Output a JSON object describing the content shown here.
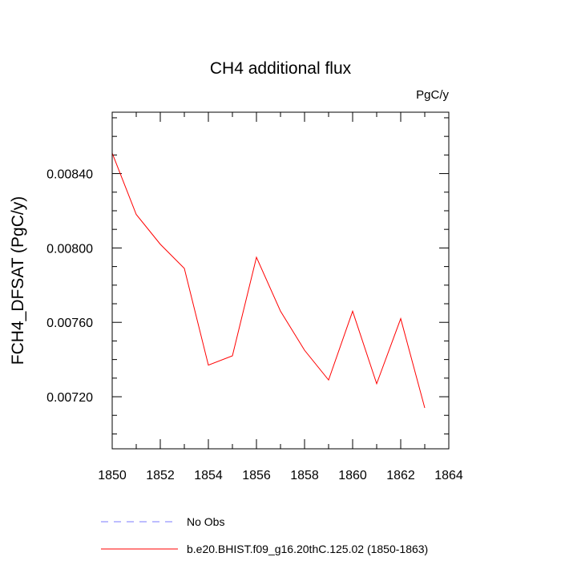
{
  "chart_data": {
    "type": "line",
    "title": "CH4 additional flux",
    "units": "PgC/y",
    "xlabel": "",
    "ylabel": "FCH4_DFSAT  (PgC/y)",
    "xlim": [
      1850,
      1864
    ],
    "ylim": [
      0.00692,
      0.00873
    ],
    "x_ticks": [
      1850,
      1852,
      1854,
      1856,
      1858,
      1860,
      1862,
      1864
    ],
    "x_tick_labels": [
      "1850",
      "1852",
      "1854",
      "1856",
      "1858",
      "1860",
      "1862",
      "1864"
    ],
    "y_ticks": [
      0.0072,
      0.0076,
      0.008,
      0.0084
    ],
    "y_tick_labels": [
      "0.00720",
      "0.00760",
      "0.00800",
      "0.00840"
    ],
    "grid": false,
    "legend_position": "bottom",
    "series": [
      {
        "name": "b.e20.BHIST.f09_g16.20thC.125.02 (1850-1863)",
        "color": "#ff0000",
        "style": "solid",
        "x": [
          1850,
          1851,
          1852,
          1853,
          1854,
          1855,
          1856,
          1857,
          1858,
          1859,
          1860,
          1861,
          1862,
          1863
        ],
        "y": [
          0.00851,
          0.00818,
          0.00802,
          0.00789,
          0.00737,
          0.00742,
          0.00795,
          0.00766,
          0.00745,
          0.00729,
          0.00766,
          0.00727,
          0.00762,
          0.00714
        ]
      }
    ],
    "legend": [
      {
        "label": "No Obs",
        "color": "#7b7bff",
        "style": "dashed"
      },
      {
        "label": "b.e20.BHIST.f09_g16.20thC.125.02 (1850-1863)",
        "color": "#ff0000",
        "style": "solid"
      }
    ]
  }
}
